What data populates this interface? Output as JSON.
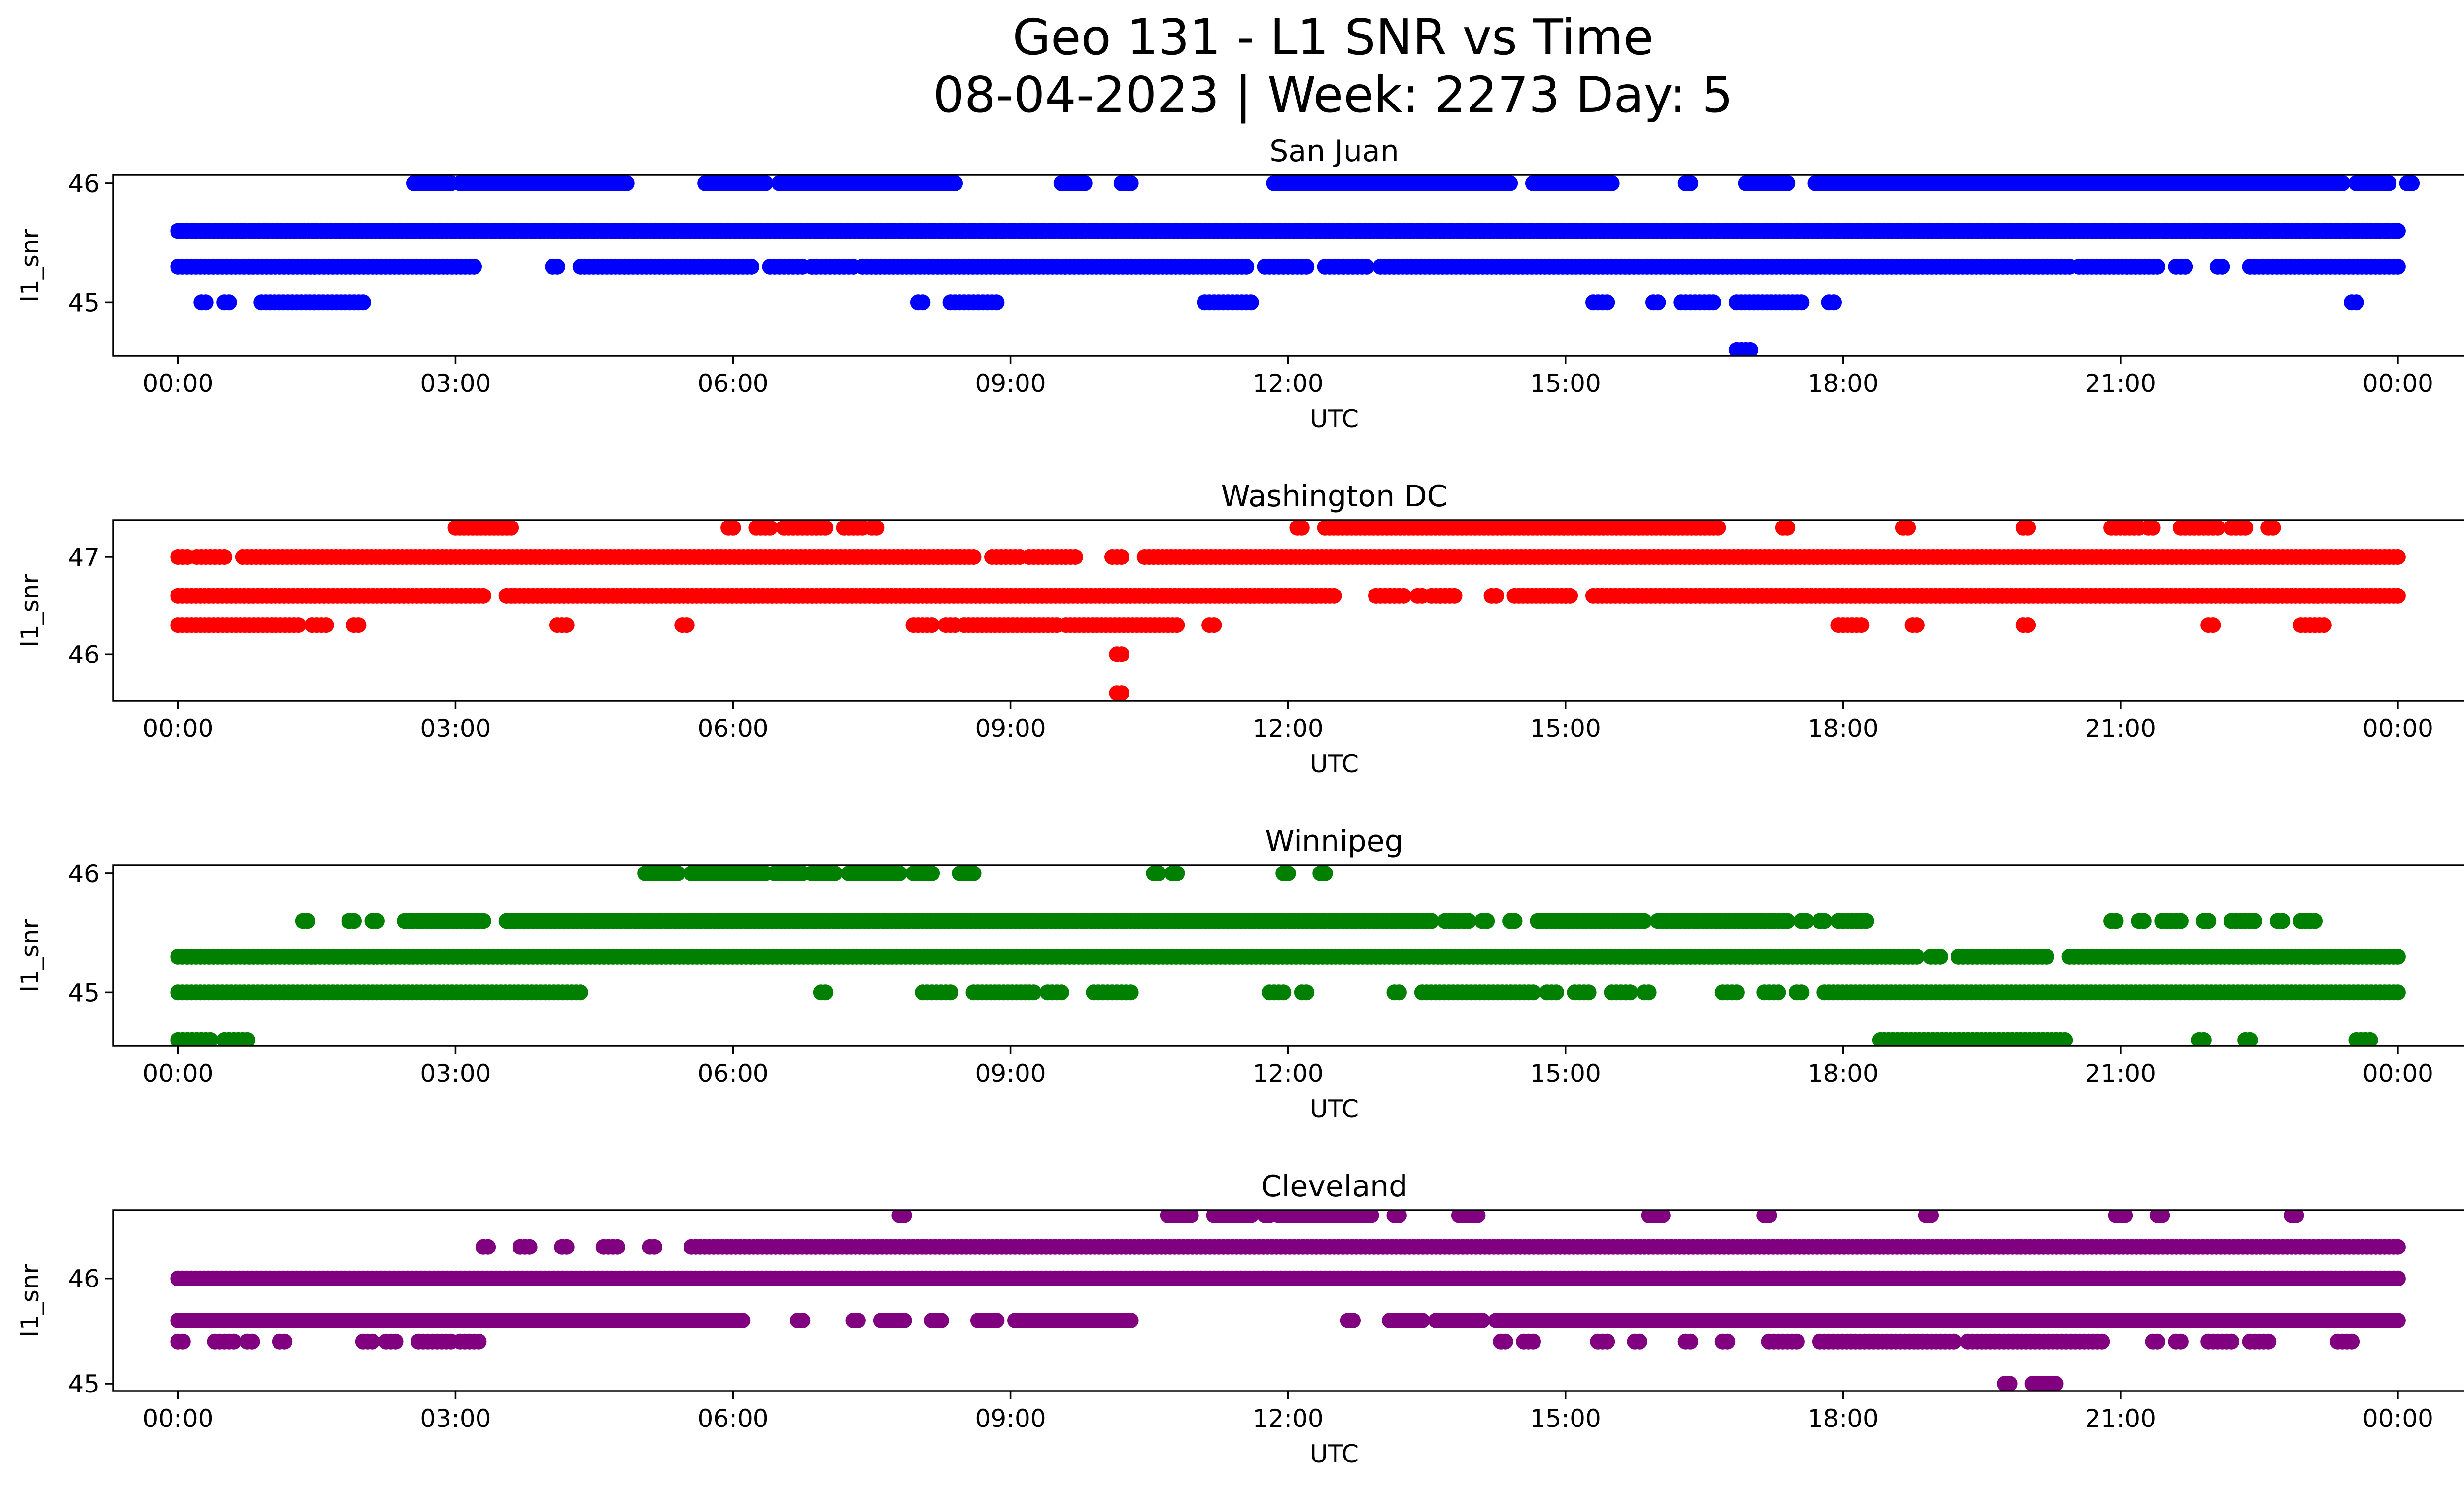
{
  "figure": {
    "title_line1": "Geo 131 - L1 SNR vs Time",
    "title_line2": "08-04-2023 | Week: 2273 Day: 5"
  },
  "chart_data": [
    {
      "type": "scatter",
      "title": "San Juan",
      "xlabel": "UTC",
      "ylabel": "l1_snr",
      "color": "#0000ff",
      "xlim": [
        -0.7,
        25.7
      ],
      "ylim": [
        44.55,
        46.07
      ],
      "x_ticks": [
        0,
        3,
        6,
        9,
        12,
        15,
        18,
        21,
        24
      ],
      "x_tick_labels": [
        "00:00",
        "03:00",
        "06:00",
        "09:00",
        "12:00",
        "15:00",
        "18:00",
        "21:00",
        "00:00"
      ],
      "y_ticks": [
        45,
        46
      ],
      "y_tick_labels": [
        "45",
        "46"
      ],
      "levels": [
        {
          "snr": 46.0,
          "segments": [
            [
              2.55,
              2.95
            ],
            [
              3.05,
              4.85
            ],
            [
              5.7,
              6.35
            ],
            [
              6.5,
              8.4
            ],
            [
              9.55,
              9.8
            ],
            [
              10.2,
              10.3
            ],
            [
              11.85,
              14.4
            ],
            [
              14.65,
              15.5
            ],
            [
              16.3,
              16.35
            ],
            [
              16.95,
              17.4
            ],
            [
              17.7,
              17.95
            ],
            [
              18.0,
              23.4
            ],
            [
              23.55,
              23.9
            ],
            [
              24.1,
              24.15
            ]
          ]
        },
        {
          "snr": 45.6,
          "segments": [
            [
              0.0,
              1.75
            ],
            [
              1.8,
              24.0
            ]
          ]
        },
        {
          "snr": 45.3,
          "segments": [
            [
              0.0,
              3.2
            ],
            [
              4.05,
              4.1
            ],
            [
              4.35,
              6.2
            ],
            [
              6.4,
              6.75
            ],
            [
              6.85,
              7.3
            ],
            [
              7.4,
              11.55
            ],
            [
              11.75,
              12.2
            ],
            [
              12.4,
              12.85
            ],
            [
              13.0,
              20.45
            ],
            [
              20.55,
              21.4
            ],
            [
              21.6,
              21.7
            ],
            [
              22.05,
              22.1
            ],
            [
              22.4,
              24.0
            ]
          ]
        },
        {
          "snr": 45.0,
          "segments": [
            [
              0.25,
              0.3
            ],
            [
              0.5,
              0.55
            ],
            [
              0.9,
              2.0
            ],
            [
              8.0,
              8.05
            ],
            [
              8.35,
              8.85
            ],
            [
              11.1,
              11.6
            ],
            [
              15.3,
              15.45
            ],
            [
              15.95,
              16.0
            ],
            [
              16.25,
              16.6
            ],
            [
              16.85,
              17.55
            ],
            [
              17.85,
              17.9
            ],
            [
              23.5,
              23.55
            ]
          ]
        },
        {
          "snr": 44.6,
          "segments": [
            [
              16.85,
              17.0
            ]
          ]
        }
      ]
    },
    {
      "type": "scatter",
      "title": "Washington DC",
      "xlabel": "UTC",
      "ylabel": "l1_snr",
      "color": "#ff0000",
      "xlim": [
        -0.7,
        25.7
      ],
      "ylim": [
        45.52,
        47.38
      ],
      "x_ticks": [
        0,
        3,
        6,
        9,
        12,
        15,
        18,
        21,
        24
      ],
      "x_tick_labels": [
        "00:00",
        "03:00",
        "06:00",
        "09:00",
        "12:00",
        "15:00",
        "18:00",
        "21:00",
        "00:00"
      ],
      "y_ticks": [
        46,
        47
      ],
      "y_tick_labels": [
        "46",
        "47"
      ],
      "levels": [
        {
          "snr": 47.3,
          "segments": [
            [
              3.0,
              3.6
            ],
            [
              5.95,
              6.0
            ],
            [
              6.25,
              6.4
            ],
            [
              6.55,
              7.0
            ],
            [
              7.2,
              7.4
            ],
            [
              7.5,
              7.55
            ],
            [
              12.1,
              12.15
            ],
            [
              12.4,
              16.65
            ],
            [
              17.35,
              17.4
            ],
            [
              18.65,
              18.7
            ],
            [
              19.95,
              20.0
            ],
            [
              20.9,
              21.2
            ],
            [
              21.3,
              21.35
            ],
            [
              21.65,
              22.05
            ],
            [
              22.2,
              22.35
            ],
            [
              22.6,
              22.65
            ]
          ]
        },
        {
          "snr": 47.0,
          "segments": [
            [
              0.0,
              0.1
            ],
            [
              0.2,
              0.5
            ],
            [
              0.7,
              8.6
            ],
            [
              8.8,
              9.1
            ],
            [
              9.2,
              9.7
            ],
            [
              10.1,
              10.2
            ],
            [
              10.45,
              24.0
            ]
          ]
        },
        {
          "snr": 46.6,
          "segments": [
            [
              0.0,
              3.3
            ],
            [
              3.55,
              12.5
            ],
            [
              12.95,
              13.25
            ],
            [
              13.4,
              13.45
            ],
            [
              13.55,
              13.8
            ],
            [
              14.2,
              14.25
            ],
            [
              14.45,
              15.05
            ],
            [
              15.3,
              24.0
            ]
          ]
        },
        {
          "snr": 46.3,
          "segments": [
            [
              0.0,
              1.3
            ],
            [
              1.45,
              1.6
            ],
            [
              1.9,
              1.95
            ],
            [
              4.1,
              4.2
            ],
            [
              5.45,
              5.5
            ],
            [
              7.95,
              8.15
            ],
            [
              8.3,
              8.4
            ],
            [
              8.5,
              9.5
            ],
            [
              9.6,
              10.8
            ],
            [
              11.15,
              11.2
            ],
            [
              17.95,
              18.2
            ],
            [
              18.75,
              18.8
            ],
            [
              19.95,
              20.0
            ],
            [
              21.95,
              22.0
            ],
            [
              22.95,
              23.2
            ]
          ]
        },
        {
          "snr": 46.0,
          "segments": [
            [
              10.15,
              10.2
            ]
          ]
        },
        {
          "snr": 45.6,
          "segments": [
            [
              10.15,
              10.2
            ]
          ]
        }
      ]
    },
    {
      "type": "scatter",
      "title": "Winnipeg",
      "xlabel": "UTC",
      "ylabel": "l1_snr",
      "color": "#008000",
      "xlim": [
        -0.7,
        25.7
      ],
      "ylim": [
        44.55,
        46.07
      ],
      "x_ticks": [
        0,
        3,
        6,
        9,
        12,
        15,
        18,
        21,
        24
      ],
      "x_tick_labels": [
        "00:00",
        "03:00",
        "06:00",
        "09:00",
        "12:00",
        "15:00",
        "18:00",
        "21:00",
        "00:00"
      ],
      "y_ticks": [
        45,
        46
      ],
      "y_tick_labels": [
        "45",
        "46"
      ],
      "levels": [
        {
          "snr": 46.0,
          "segments": [
            [
              5.05,
              5.4
            ],
            [
              5.55,
              6.35
            ],
            [
              6.45,
              6.75
            ],
            [
              6.85,
              7.1
            ],
            [
              7.25,
              7.8
            ],
            [
              7.95,
              8.15
            ],
            [
              8.45,
              8.6
            ],
            [
              10.55,
              10.6
            ],
            [
              10.75,
              10.8
            ],
            [
              11.95,
              12.0
            ],
            [
              12.35,
              12.4
            ]
          ]
        },
        {
          "snr": 45.6,
          "segments": [
            [
              1.35,
              1.4
            ],
            [
              1.85,
              1.9
            ],
            [
              2.1,
              2.15
            ],
            [
              2.45,
              3.3
            ],
            [
              3.55,
              13.55
            ],
            [
              13.7,
              13.95
            ],
            [
              14.1,
              14.15
            ],
            [
              14.4,
              14.45
            ],
            [
              14.7,
              15.85
            ],
            [
              16.0,
              17.4
            ],
            [
              17.55,
              17.6
            ],
            [
              17.75,
              17.8
            ],
            [
              17.95,
              18.25
            ],
            [
              20.9,
              20.95
            ],
            [
              21.2,
              21.25
            ],
            [
              21.45,
              21.65
            ],
            [
              21.9,
              21.95
            ],
            [
              22.2,
              22.45
            ],
            [
              22.7,
              22.75
            ],
            [
              22.95,
              23.1
            ]
          ]
        },
        {
          "snr": 45.3,
          "segments": [
            [
              0.0,
              18.8
            ],
            [
              18.95,
              19.05
            ],
            [
              19.25,
              19.45
            ],
            [
              19.5,
              20.2
            ],
            [
              20.45,
              24.0
            ]
          ]
        },
        {
          "snr": 45.0,
          "segments": [
            [
              0.0,
              4.35
            ],
            [
              6.95,
              7.0
            ],
            [
              8.05,
              8.35
            ],
            [
              8.6,
              9.25
            ],
            [
              9.4,
              9.55
            ],
            [
              9.9,
              10.3
            ],
            [
              11.8,
              11.95
            ],
            [
              12.15,
              12.2
            ],
            [
              13.15,
              13.2
            ],
            [
              13.45,
              14.65
            ],
            [
              14.8,
              14.9
            ],
            [
              15.1,
              15.25
            ],
            [
              15.5,
              15.7
            ],
            [
              15.85,
              15.9
            ],
            [
              16.7,
              16.85
            ],
            [
              17.15,
              17.3
            ],
            [
              17.5,
              17.55
            ],
            [
              17.8,
              24.0
            ]
          ]
        },
        {
          "snr": 44.6,
          "segments": [
            [
              0.0,
              0.35
            ],
            [
              0.5,
              0.75
            ],
            [
              18.4,
              20.4
            ],
            [
              21.85,
              21.9
            ],
            [
              22.35,
              22.4
            ],
            [
              23.55,
              23.7
            ]
          ]
        }
      ]
    },
    {
      "type": "scatter",
      "title": "Cleveland",
      "xlabel": "UTC",
      "ylabel": "l1_snr",
      "color": "#800080",
      "xlim": [
        -0.7,
        25.7
      ],
      "ylim": [
        44.93,
        46.65
      ],
      "x_ticks": [
        0,
        3,
        6,
        9,
        12,
        15,
        18,
        21,
        24
      ],
      "x_tick_labels": [
        "00:00",
        "03:00",
        "06:00",
        "09:00",
        "12:00",
        "15:00",
        "18:00",
        "21:00",
        "00:00"
      ],
      "y_ticks": [
        45,
        46
      ],
      "y_tick_labels": [
        "45",
        "46"
      ],
      "levels": [
        {
          "snr": 46.6,
          "segments": [
            [
              7.8,
              7.85
            ],
            [
              10.7,
              10.95
            ],
            [
              11.2,
              11.6
            ],
            [
              11.75,
              11.8
            ],
            [
              11.9,
              12.9
            ],
            [
              13.15,
              13.2
            ],
            [
              13.85,
              14.05
            ],
            [
              15.9,
              16.05
            ],
            [
              17.15,
              17.2
            ],
            [
              18.9,
              18.95
            ],
            [
              20.95,
              21.05
            ],
            [
              21.4,
              21.45
            ],
            [
              22.85,
              22.9
            ]
          ]
        },
        {
          "snr": 46.3,
          "segments": [
            [
              3.3,
              3.35
            ],
            [
              3.7,
              3.8
            ],
            [
              4.15,
              4.2
            ],
            [
              4.6,
              4.75
            ],
            [
              5.1,
              5.15
            ],
            [
              5.55,
              24.0
            ]
          ]
        },
        {
          "snr": 46.0,
          "segments": [
            [
              0.0,
              0.8
            ],
            [
              0.85,
              24.0
            ]
          ]
        },
        {
          "snr": 45.6,
          "segments": [
            [
              0.0,
              6.1
            ],
            [
              6.7,
              6.75
            ],
            [
              7.3,
              7.35
            ],
            [
              7.6,
              7.85
            ],
            [
              8.15,
              8.25
            ],
            [
              8.65,
              8.85
            ],
            [
              9.05,
              10.3
            ],
            [
              12.65,
              12.7
            ],
            [
              13.1,
              13.45
            ],
            [
              13.6,
              14.1
            ],
            [
              14.25,
              24.0
            ]
          ]
        },
        {
          "snr": 45.4,
          "segments": [
            [
              0.0,
              0.05
            ],
            [
              0.4,
              0.6
            ],
            [
              0.75,
              0.8
            ],
            [
              1.1,
              1.15
            ],
            [
              2.0,
              2.1
            ],
            [
              2.25,
              2.35
            ],
            [
              2.6,
              2.95
            ],
            [
              3.05,
              3.25
            ],
            [
              14.3,
              14.35
            ],
            [
              14.55,
              14.65
            ],
            [
              15.35,
              15.45
            ],
            [
              15.75,
              15.8
            ],
            [
              16.3,
              16.35
            ],
            [
              16.7,
              16.75
            ],
            [
              17.2,
              17.5
            ],
            [
              17.75,
              19.2
            ],
            [
              19.35,
              19.4
            ],
            [
              19.45,
              20.8
            ],
            [
              21.35,
              21.4
            ],
            [
              21.6,
              21.65
            ],
            [
              21.95,
              22.2
            ],
            [
              22.4,
              22.6
            ],
            [
              23.35,
              23.5
            ]
          ]
        },
        {
          "snr": 45.0,
          "segments": [
            [
              19.75,
              19.8
            ],
            [
              20.05,
              20.3
            ]
          ]
        }
      ]
    }
  ]
}
